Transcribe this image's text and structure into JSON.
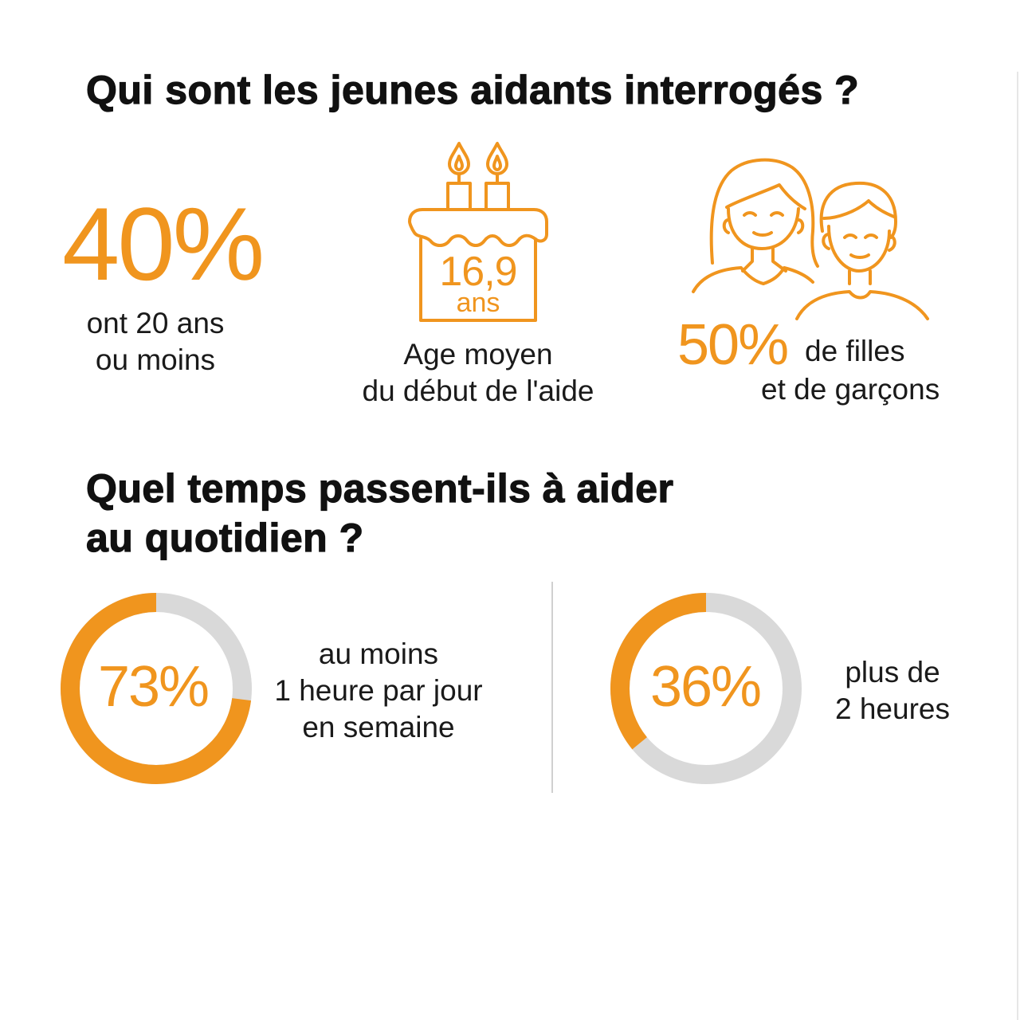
{
  "section1": {
    "title": "Qui sont les jeunes aidants interrogés ?",
    "stat_age": {
      "value": "40%",
      "label_line1": "ont 20 ans",
      "label_line2": "ou moins"
    },
    "stat_start": {
      "value": "16,9",
      "unit": "ans",
      "label_line1": "Age moyen",
      "label_line2": "du début de l'aide",
      "icon": "birthday-cake-icon"
    },
    "stat_gender": {
      "value": "50%",
      "label_line1": "de filles",
      "label_line2": "et de garçons",
      "icon": "girl-boy-icon"
    }
  },
  "section2": {
    "title_line1": "Quel temps passent-ils à aider",
    "title_line2": "au quotidien ?",
    "stat_weekday": {
      "value": "73%",
      "fraction": 0.73,
      "label_line1": "au moins",
      "label_line2": "1 heure par jour",
      "label_line3": "en semaine"
    },
    "stat_two_hours": {
      "value": "36%",
      "fraction": 0.36,
      "label_line1": "plus de",
      "label_line2": "2 heures"
    }
  },
  "colors": {
    "accent": "#f0951e",
    "track": "#d9d9d9",
    "text": "#1a1a1a"
  }
}
